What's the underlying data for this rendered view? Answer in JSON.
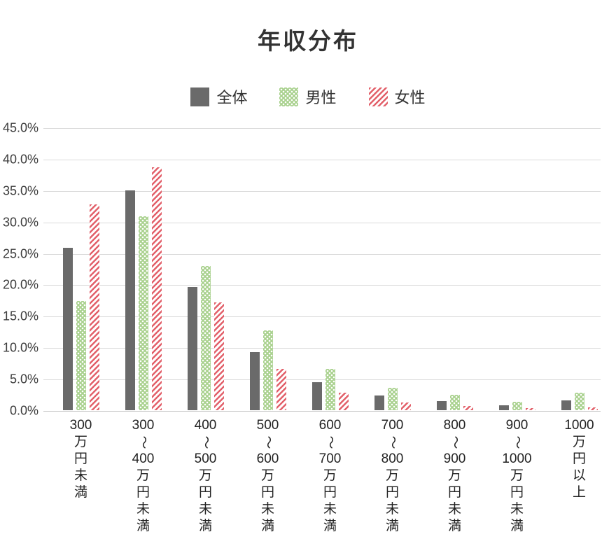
{
  "chart_data": {
    "type": "bar",
    "title": "年収分布",
    "legend_position": "top",
    "grid": true,
    "ylim": [
      0,
      45
    ],
    "ytick_step": 5,
    "ytick_labels": [
      "45.0%",
      "40.0%",
      "35.0%",
      "30.0%",
      "25.0%",
      "20.0%",
      "15.0%",
      "10.0%",
      "5.0%",
      "0.0%"
    ],
    "ylabel": "",
    "xlabel": "",
    "categories": [
      "300万円未満",
      "300〜400万円未満",
      "400〜500万円未満",
      "500〜600万円未満",
      "600〜700万円未満",
      "700〜800万円未満",
      "800〜900万円未満",
      "900〜1000万円未満",
      "1000万円以上"
    ],
    "category_label_lines": [
      [
        "300",
        "万",
        "円",
        "未",
        "満"
      ],
      [
        "300",
        "〜",
        "400",
        "万",
        "円",
        "未",
        "満"
      ],
      [
        "400",
        "〜",
        "500",
        "万",
        "円",
        "未",
        "満"
      ],
      [
        "500",
        "〜",
        "600",
        "万",
        "円",
        "未",
        "満"
      ],
      [
        "600",
        "〜",
        "700",
        "万",
        "円",
        "未",
        "満"
      ],
      [
        "700",
        "〜",
        "800",
        "万",
        "円",
        "未",
        "満"
      ],
      [
        "800",
        "〜",
        "900",
        "万",
        "円",
        "未",
        "満"
      ],
      [
        "900",
        "〜",
        "1000",
        "万",
        "円",
        "未",
        "満"
      ],
      [
        "1000",
        "万",
        "円",
        "以",
        "上"
      ]
    ],
    "series": [
      {
        "name": "全体",
        "pattern": "solid",
        "color": "#6a6a6a",
        "values": [
          25.8,
          35.0,
          19.6,
          9.3,
          4.5,
          2.3,
          1.5,
          0.8,
          1.6
        ]
      },
      {
        "name": "男性",
        "pattern": "dots",
        "color": "#a9d18e",
        "values": [
          17.4,
          30.9,
          22.9,
          12.7,
          6.6,
          3.6,
          2.4,
          1.3,
          2.8
        ]
      },
      {
        "name": "女性",
        "pattern": "stripes",
        "color": "#e2606a",
        "values": [
          32.8,
          38.6,
          17.2,
          6.6,
          2.8,
          1.2,
          0.7,
          0.3,
          0.5
        ]
      }
    ],
    "colors": {
      "grid": "#dadada",
      "axis": "#c6c6c6",
      "tick_text": "#3c3c3c",
      "category_text": "#222222",
      "title_text": "#333333"
    }
  }
}
